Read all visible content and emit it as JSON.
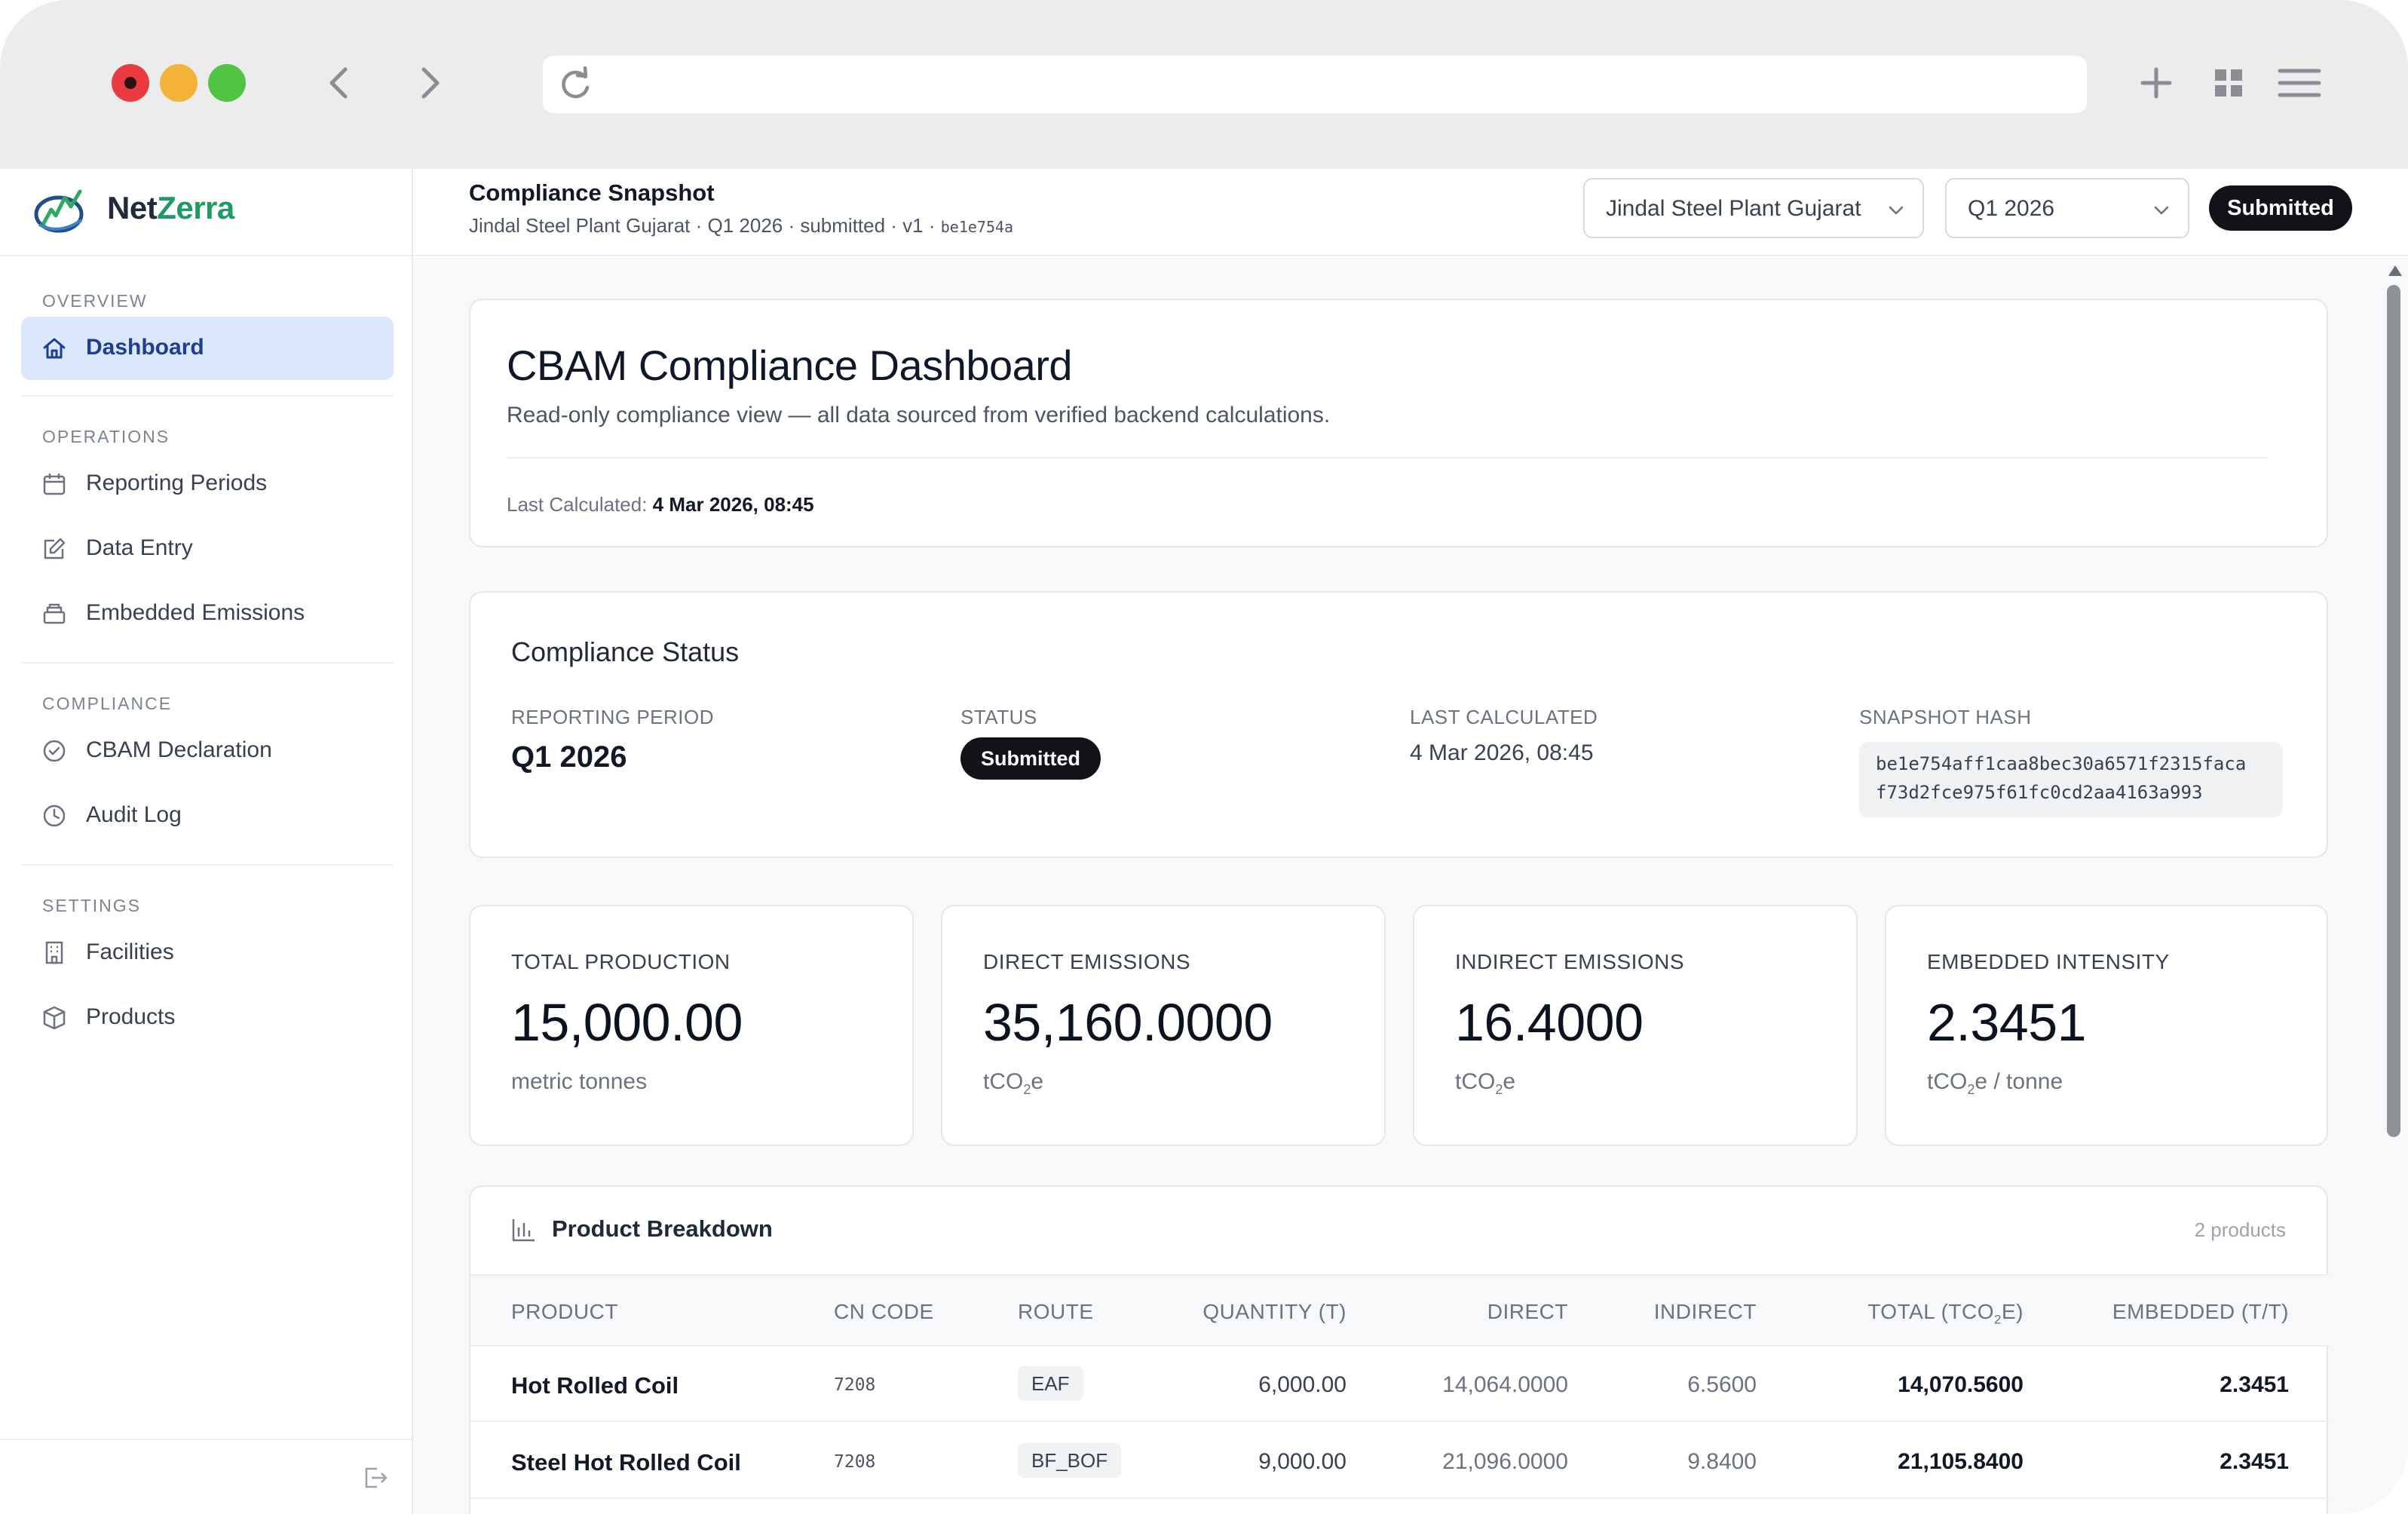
{
  "browser": {
    "url": ""
  },
  "sidebar": {
    "brand_part1": "Net",
    "brand_part2": "Zerra",
    "sections": [
      {
        "label": "OVERVIEW"
      },
      {
        "label": "OPERATIONS"
      },
      {
        "label": "COMPLIANCE"
      },
      {
        "label": "SETTINGS"
      }
    ],
    "items": [
      {
        "label": "Dashboard",
        "icon": "home-icon",
        "active": true
      },
      {
        "label": "Reporting Periods",
        "icon": "calendar-icon"
      },
      {
        "label": "Data Entry",
        "icon": "edit-icon"
      },
      {
        "label": "Embedded Emissions",
        "icon": "layers-icon"
      },
      {
        "label": "CBAM Declaration",
        "icon": "check-circle-icon"
      },
      {
        "label": "Audit Log",
        "icon": "clock-icon"
      },
      {
        "label": "Facilities",
        "icon": "building-icon"
      },
      {
        "label": "Products",
        "icon": "box-icon"
      }
    ]
  },
  "header": {
    "title": "Compliance Snapshot",
    "subtitle": "Jindal Steel Plant Gujarat · Q1 2026 · submitted · v1 · ",
    "hash_short": "be1e754a",
    "facility_select": "Jindal Steel Plant Gujarat",
    "period_select": "Q1 2026",
    "status_badge": "Submitted"
  },
  "dashboard": {
    "title": "CBAM Compliance Dashboard",
    "description": "Read-only compliance view — all data sourced from verified backend calculations.",
    "last_calculated_label": "Last Calculated: ",
    "last_calculated_value": "4 Mar 2026, 08:45"
  },
  "compliance_status": {
    "title": "Compliance Status",
    "reporting_period_label": "REPORTING PERIOD",
    "reporting_period_value": "Q1 2026",
    "status_label": "STATUS",
    "status_value": "Submitted",
    "last_calculated_label": "LAST CALCULATED",
    "last_calculated_value": "4 Mar 2026, 08:45",
    "snapshot_hash_label": "SNAPSHOT HASH",
    "snapshot_hash_line1": "be1e754aff1caa8bec30a6571f2315faca",
    "snapshot_hash_line2": "f73d2fce975f61fc0cd2aa4163a993"
  },
  "metrics": [
    {
      "label": "TOTAL PRODUCTION",
      "value": "15,000.00",
      "unit_pre": "metric tonnes",
      "unit_sub": "",
      "unit_post": ""
    },
    {
      "label": "DIRECT EMISSIONS",
      "value": "35,160.0000",
      "unit_pre": "tCO",
      "unit_sub": "2",
      "unit_post": "e"
    },
    {
      "label": "INDIRECT EMISSIONS",
      "value": "16.4000",
      "unit_pre": "tCO",
      "unit_sub": "2",
      "unit_post": "e"
    },
    {
      "label": "EMBEDDED INTENSITY",
      "value": "2.3451",
      "unit_pre": "tCO",
      "unit_sub": "2",
      "unit_post": "e / tonne"
    }
  ],
  "product_breakdown": {
    "title": "Product Breakdown",
    "count": "2 products",
    "columns": {
      "product": "PRODUCT",
      "cn_code": "CN CODE",
      "route": "ROUTE",
      "quantity": "QUANTITY (T)",
      "direct": "DIRECT",
      "indirect": "INDIRECT",
      "total_pre": "TOTAL (TCO",
      "total_sub": "2",
      "total_post": "E)",
      "embedded": "EMBEDDED (T/T)"
    },
    "rows": [
      {
        "product": "Hot Rolled Coil",
        "cn_code": "7208",
        "route": "EAF",
        "quantity": "6,000.00",
        "direct": "14,064.0000",
        "indirect": "6.5600",
        "total": "14,070.5600",
        "embedded": "2.3451"
      },
      {
        "product": "Steel Hot Rolled Coil",
        "cn_code": "7208",
        "route": "BF_BOF",
        "quantity": "9,000.00",
        "direct": "21,096.0000",
        "indirect": "9.8400",
        "total": "21,105.8400",
        "embedded": "2.3451"
      }
    ]
  },
  "colors": {
    "active_nav_bg": "#dbe7fb",
    "active_nav_text": "#1d3f8f",
    "badge_dark": "#111318",
    "brand_green": "#1f9a63"
  }
}
